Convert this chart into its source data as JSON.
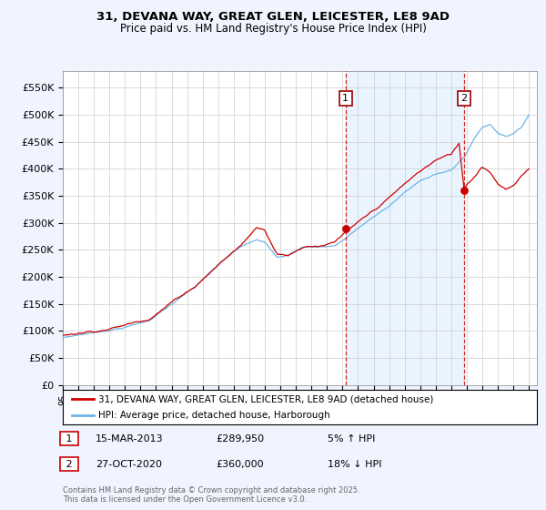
{
  "title_line1": "31, DEVANA WAY, GREAT GLEN, LEICESTER, LE8 9AD",
  "title_line2": "Price paid vs. HM Land Registry's House Price Index (HPI)",
  "ylabel_ticks": [
    "£0",
    "£50K",
    "£100K",
    "£150K",
    "£200K",
    "£250K",
    "£300K",
    "£350K",
    "£400K",
    "£450K",
    "£500K",
    "£550K"
  ],
  "ylim": [
    0,
    580000
  ],
  "legend_line1": "31, DEVANA WAY, GREAT GLEN, LEICESTER, LE8 9AD (detached house)",
  "legend_line2": "HPI: Average price, detached house, Harborough",
  "line_color_hpi": "#6EB4E8",
  "line_color_price": "#CC0000",
  "shade_color": "#DDEEFF",
  "marker1_label": "1",
  "marker1_date": "15-MAR-2013",
  "marker1_price": "£289,950",
  "marker1_pct": "5% ↑ HPI",
  "marker1_year": 2013.2,
  "marker1_value": 289950,
  "marker2_label": "2",
  "marker2_date": "27-OCT-2020",
  "marker2_price": "£360,000",
  "marker2_pct": "18% ↓ HPI",
  "marker2_year": 2020.83,
  "marker2_value": 360000,
  "background_color": "#F0F4FF",
  "plot_bg_color": "#FFFFFF",
  "footer": "Contains HM Land Registry data © Crown copyright and database right 2025.\nThis data is licensed under the Open Government Licence v3.0."
}
